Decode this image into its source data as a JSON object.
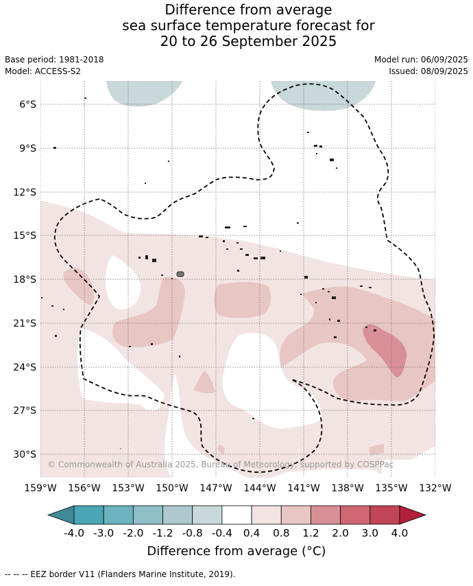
{
  "title": {
    "line1": "Difference from average",
    "line2": "sea surface temperature forecast for",
    "line3": "20 to 26 September 2025"
  },
  "meta": {
    "base_period": "Base period: 1981-2018",
    "model": "Model: ACCESS-S2",
    "model_run": "Model run: 06/09/2025",
    "issued": "Issued: 08/09/2025"
  },
  "map": {
    "lat_labels": [
      "6°S",
      "9°S",
      "12°S",
      "15°S",
      "18°S",
      "21°S",
      "24°S",
      "27°S",
      "30°S"
    ],
    "lon_labels": [
      "159°W",
      "156°W",
      "153°W",
      "150°W",
      "147°W",
      "144°W",
      "141°W",
      "138°W",
      "135°W",
      "132°W"
    ],
    "copyright": "© Commonwealth of Australia 2025, Bureau of Meteorology, supported by COSPPac",
    "gridlines": true
  },
  "colorbar": {
    "title": "Difference from average (°C)",
    "tick_labels": [
      "-4.0",
      "-3.0",
      "-2.0",
      "-1.2",
      "-0.8",
      "-0.4",
      "0.4",
      "0.8",
      "1.2",
      "2.0",
      "3.0",
      "4.0"
    ],
    "colors": [
      "#3f8a96",
      "#4aa6b4",
      "#6cb2bf",
      "#8fbfc8",
      "#adc9cd",
      "#c9d8da",
      "#ffffff",
      "#f2e4e3",
      "#e8c6c4",
      "#d88f96",
      "#cf6672",
      "#c04555",
      "#b0203a"
    ]
  },
  "footnote": "--  --  -- EEZ border V11 (Flanders Marine Institute, 2019)."
}
